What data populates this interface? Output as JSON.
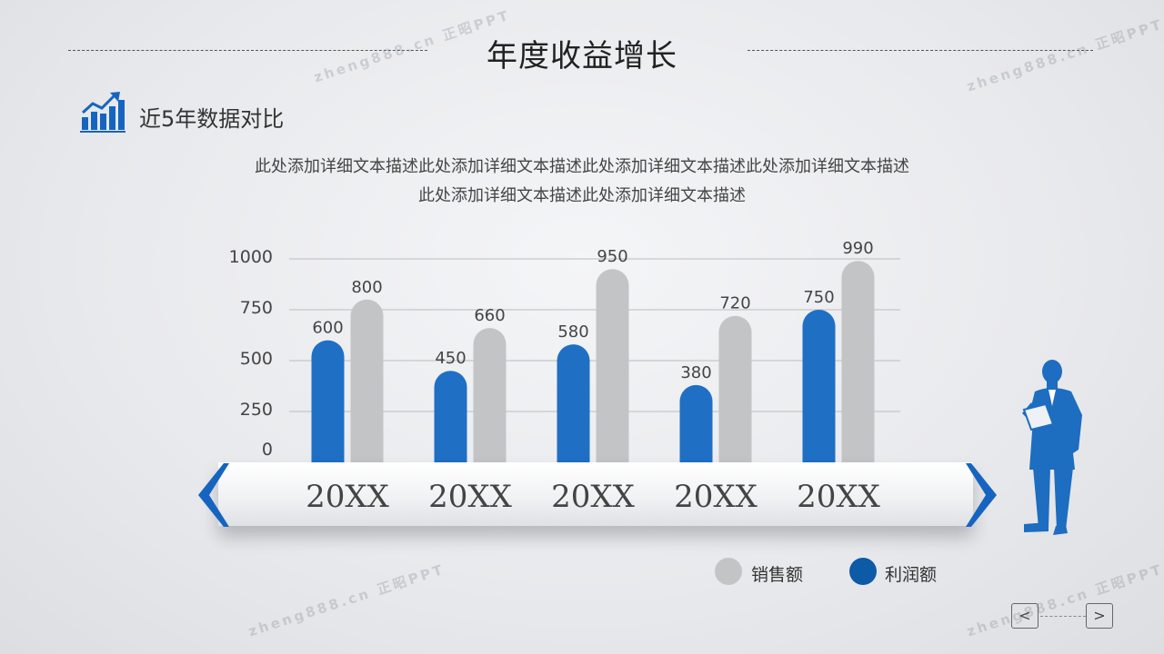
{
  "title": "年度收益增长",
  "section_title": "近5年数据对比",
  "description": [
    "此处添加详细文本描述此处添加详细文本描述此处添加详细文本描述此处添加详细文本描述",
    "此处添加详细文本描述此处添加详细文本描述"
  ],
  "watermarks": [
    "zheng888.cn 正昭PPT",
    "zheng888.cn 正昭PPT",
    "zheng888.cn 正昭PPT",
    "zheng888.cn 正昭PPT"
  ],
  "icons": {
    "section": "bar-chart-trend-icon",
    "person": "businessman-silhouette-icon",
    "prev": "chevron-left-icon",
    "next": "chevron-right-icon"
  },
  "nav": {
    "prev": "<",
    "next": ">"
  },
  "colors": {
    "profit": "#1f6fc5",
    "sales": "#c3c4c6",
    "legend_profit": "#0d5aa7",
    "accent": "#1565c0"
  },
  "chart_data": {
    "type": "bar",
    "categories": [
      "20XX",
      "20XX",
      "20XX",
      "20XX",
      "20XX"
    ],
    "series": [
      {
        "name": "利润额",
        "values": [
          600,
          450,
          580,
          380,
          750
        ]
      },
      {
        "name": "销售额",
        "values": [
          800,
          660,
          950,
          720,
          990
        ]
      }
    ],
    "yticks": [
      "0",
      "250",
      "500",
      "750",
      "1000"
    ],
    "ylim": [
      0,
      1000
    ],
    "grid": true,
    "legend": "bottom-right"
  }
}
